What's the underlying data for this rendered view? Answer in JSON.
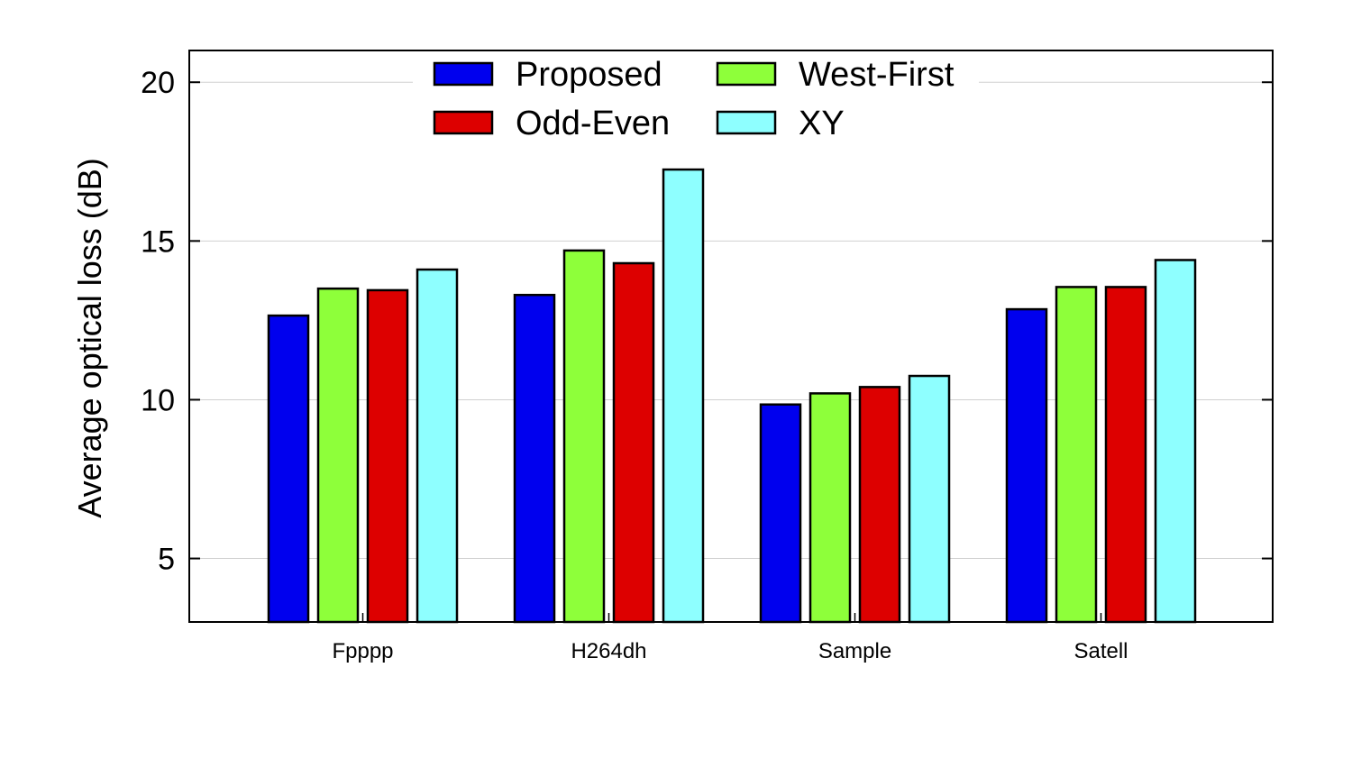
{
  "chart_data": {
    "type": "bar",
    "title": "",
    "xlabel": "",
    "ylabel": "Average optical loss (dB)",
    "categories": [
      "Fpppp",
      "H264dh",
      "Sample",
      "Satell"
    ],
    "series": [
      {
        "name": "Proposed",
        "color": "#0000ee",
        "values": [
          12.65,
          13.3,
          9.85,
          12.85
        ]
      },
      {
        "name": "West-First",
        "color": "#8eff3a",
        "values": [
          13.5,
          14.7,
          10.2,
          13.55
        ]
      },
      {
        "name": "Odd-Even",
        "color": "#dd0000",
        "values": [
          13.45,
          14.3,
          10.4,
          13.55
        ]
      },
      {
        "name": "XY",
        "color": "#8effff",
        "values": [
          14.1,
          17.25,
          10.75,
          14.4
        ]
      }
    ],
    "ylim": [
      3,
      21
    ],
    "yticks": [
      5,
      10,
      15,
      20
    ],
    "grid": true,
    "legend": "top-center",
    "legend_columns": 2
  }
}
